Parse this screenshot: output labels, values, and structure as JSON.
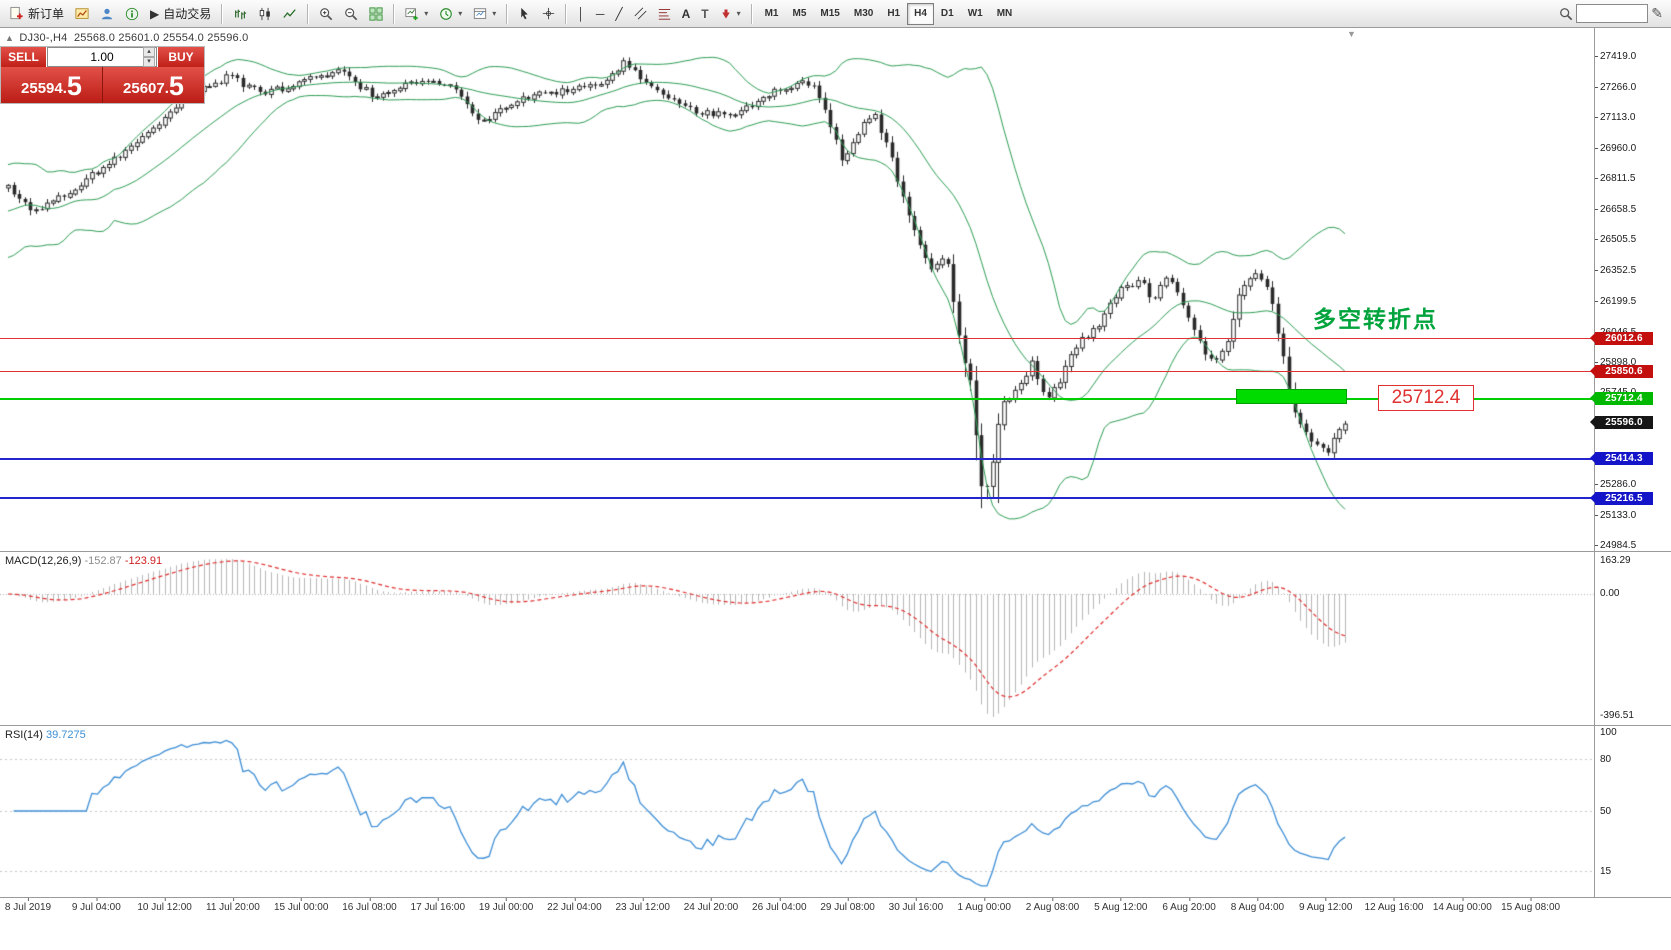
{
  "toolbar": {
    "new_order_label": "新订单",
    "autotrading_label": "自动交易",
    "timeframes": [
      "M1",
      "M5",
      "M15",
      "M30",
      "H1",
      "H4",
      "D1",
      "W1",
      "MN"
    ],
    "active_timeframe": "H4",
    "search_value": ""
  },
  "icons": {
    "play": "▶",
    "up_arrow": "▲",
    "dropdown": "▾",
    "spin_up": "▴",
    "spin_down": "▾",
    "vertical_line": "│",
    "horizontal_line": "─",
    "trendline": "╱",
    "text_tool": "A",
    "label_tool": "T",
    "pencil": "✎",
    "shift_marker": "▼"
  },
  "symbol_bar": {
    "symbol": "DJ30-,H4",
    "open": "25568.0",
    "high": "25601.0",
    "low": "25554.0",
    "close": "25596.0"
  },
  "trade_panel": {
    "sell_label": "SELL",
    "buy_label": "BUY",
    "volume": "1.00",
    "sell_price": "25594.",
    "sell_price_big": "5",
    "buy_price": "25607.",
    "buy_price_big": "5"
  },
  "annotation": "多空转折点",
  "level_label": "25712.4",
  "price_axis_labels": [
    "27419.0",
    "27266.0",
    "27113.0",
    "26960.0",
    "26811.5",
    "26658.5",
    "26505.5",
    "26352.5",
    "26199.5",
    "26046.5",
    "25898.0",
    "25745.0",
    "25286.0",
    "25133.0",
    "24984.5"
  ],
  "price_tags": [
    {
      "text": "26012.6",
      "price": 26012.6,
      "color": "#c40f0f"
    },
    {
      "text": "25850.6",
      "price": 25850.6,
      "color": "#c40f0f"
    },
    {
      "text": "25712.4",
      "price": 25712.4,
      "color": "#00b800"
    },
    {
      "text": "25596.0",
      "price": 25596.0,
      "color": "#161616"
    },
    {
      "text": "25414.3",
      "price": 25414.3,
      "color": "#1414c8"
    },
    {
      "text": "25216.5",
      "price": 25216.5,
      "color": "#1414c8"
    }
  ],
  "hlines": [
    {
      "price": 26012.6,
      "color": "#e03030",
      "w": 1
    },
    {
      "price": 25850.6,
      "color": "#e03030",
      "w": 1
    },
    {
      "price": 25712.4,
      "color": "#00ce00",
      "w": 2
    },
    {
      "price": 25414.3,
      "color": "#2424d0",
      "w": 2
    },
    {
      "price": 25216.5,
      "color": "#2424d0",
      "w": 2
    }
  ],
  "macd_panel": {
    "name": "MACD(12,26,9)",
    "main_value": "-152.87",
    "signal_value": "-123.91",
    "axis_top": "163.29",
    "axis_zero": "0.00",
    "axis_bottom": "-396.51"
  },
  "rsi_panel": {
    "name": "RSI(14)",
    "value": "39.7275",
    "axis": [
      {
        "text": "100",
        "value": 100
      },
      {
        "text": "80",
        "value": 80
      },
      {
        "text": "50",
        "value": 50
      },
      {
        "text": "15",
        "value": 15
      }
    ]
  },
  "time_axis": [
    "8 Jul 2019",
    "9 Jul 04:00",
    "10 Jul 12:00",
    "11 Jul 20:00",
    "15 Jul 00:00",
    "16 Jul 08:00",
    "17 Jul 16:00",
    "19 Jul 00:00",
    "22 Jul 04:00",
    "23 Jul 12:00",
    "24 Jul 20:00",
    "26 Jul 04:00",
    "29 Jul 08:00",
    "30 Jul 16:00",
    "1 Aug 00:00",
    "2 Aug 08:00",
    "5 Aug 12:00",
    "6 Aug 20:00",
    "8 Aug 04:00",
    "9 Aug 12:00",
    "12 Aug 16:00",
    "14 Aug 00:00",
    "15 Aug 08:00"
  ],
  "colors": {
    "candle": "#2a2a2a",
    "bollinger": "#2f9e55",
    "macd_hist": "#b8b8b8",
    "macd_signal": "#e03030",
    "rsi_line": "#3f8fd6",
    "annotation_green": "#00a33c",
    "level_red": "#e03030"
  },
  "chart_data": {
    "type": "candlestick",
    "symbol": "DJ30-",
    "timeframe": "H4",
    "title": "DJ30-,H4",
    "ohlc_current": {
      "open": 25568.0,
      "high": 25601.0,
      "low": 25554.0,
      "close": 25596.0
    },
    "bid": 25594.5,
    "ask": 25607.5,
    "visible_price_range": [
      24984.5,
      27419.0
    ],
    "time_range": [
      "8 Jul 2019",
      "15 Aug 2019 08:00"
    ],
    "levels": {
      "resistance": [
        26012.6,
        25850.6
      ],
      "pivot_zone": 25712.4,
      "support": [
        25414.3,
        25216.5
      ],
      "annotation_text": "多空转折点"
    },
    "price_path": [
      [
        0.0,
        26760
      ],
      [
        0.02,
        26650
      ],
      [
        0.05,
        26760
      ],
      [
        0.09,
        26960
      ],
      [
        0.13,
        27190
      ],
      [
        0.165,
        27320
      ],
      [
        0.19,
        27230
      ],
      [
        0.225,
        27300
      ],
      [
        0.25,
        27340
      ],
      [
        0.275,
        27210
      ],
      [
        0.3,
        27300
      ],
      [
        0.33,
        27270
      ],
      [
        0.355,
        27090
      ],
      [
        0.38,
        27200
      ],
      [
        0.41,
        27240
      ],
      [
        0.44,
        27270
      ],
      [
        0.462,
        27390
      ],
      [
        0.48,
        27260
      ],
      [
        0.515,
        27140
      ],
      [
        0.545,
        27130
      ],
      [
        0.575,
        27250
      ],
      [
        0.6,
        27290
      ],
      [
        0.612,
        27140
      ],
      [
        0.625,
        26880
      ],
      [
        0.638,
        27060
      ],
      [
        0.648,
        27140
      ],
      [
        0.662,
        26880
      ],
      [
        0.676,
        26580
      ],
      [
        0.692,
        26340
      ],
      [
        0.702,
        26440
      ],
      [
        0.712,
        25980
      ],
      [
        0.72,
        25800
      ],
      [
        0.727,
        25290
      ],
      [
        0.733,
        25260
      ],
      [
        0.742,
        25660
      ],
      [
        0.756,
        25770
      ],
      [
        0.766,
        25900
      ],
      [
        0.776,
        25690
      ],
      [
        0.787,
        25810
      ],
      [
        0.8,
        25990
      ],
      [
        0.817,
        26090
      ],
      [
        0.83,
        26240
      ],
      [
        0.846,
        26310
      ],
      [
        0.857,
        26190
      ],
      [
        0.866,
        26330
      ],
      [
        0.876,
        26240
      ],
      [
        0.885,
        26080
      ],
      [
        0.895,
        25940
      ],
      [
        0.904,
        25890
      ],
      [
        0.913,
        26010
      ],
      [
        0.922,
        26260
      ],
      [
        0.932,
        26330
      ],
      [
        0.941,
        26290
      ],
      [
        0.949,
        26080
      ],
      [
        0.956,
        25840
      ],
      [
        0.964,
        25590
      ],
      [
        0.971,
        25540
      ],
      [
        0.979,
        25470
      ],
      [
        0.986,
        25440
      ],
      [
        0.993,
        25520
      ],
      [
        1.0,
        25596
      ]
    ],
    "crash_zone": {
      "from": 0.713,
      "to": 0.742,
      "extra_low_wick": 175,
      "approx_low": 25030
    },
    "indicators": {
      "bollinger": {
        "period": 20,
        "deviation": 2
      },
      "macd": {
        "fast": 12,
        "slow": 26,
        "signal": 9,
        "current_main": -152.87,
        "current_signal": -123.91,
        "axis_range": [
          -396.51,
          163.29
        ]
      },
      "rsi": {
        "period": 14,
        "current": 39.7275,
        "levels": [
          80,
          50,
          15
        ]
      }
    }
  }
}
